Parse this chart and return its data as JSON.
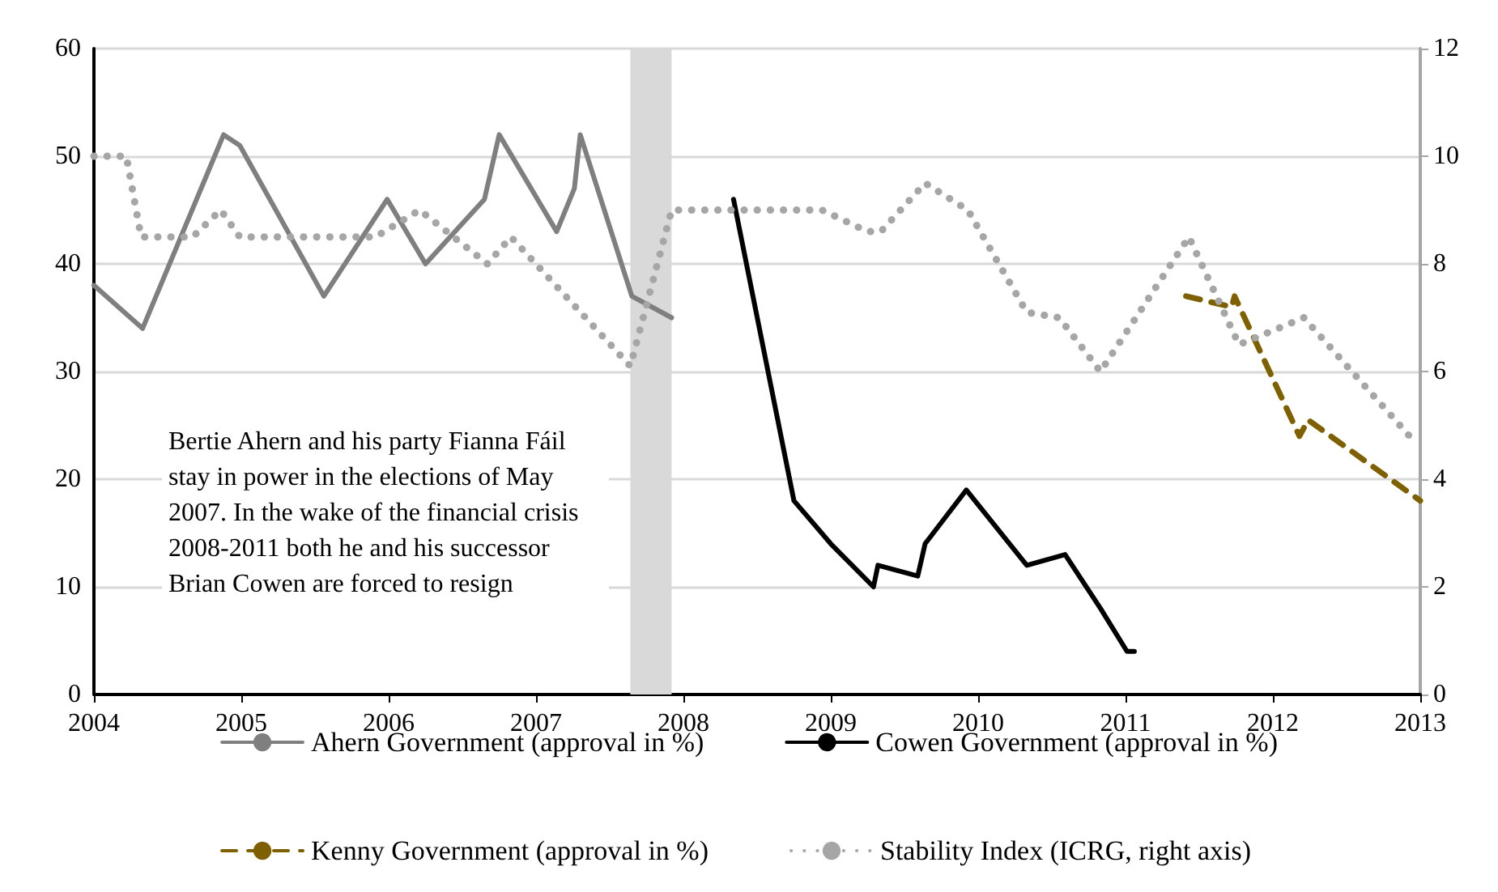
{
  "chart_data": {
    "type": "line",
    "xlim": [
      2004,
      2013
    ],
    "xticks": [
      2004,
      2005,
      2006,
      2007,
      2008,
      2009,
      2010,
      2011,
      2012,
      2013
    ],
    "ylim": [
      0,
      60
    ],
    "yticks": [
      0,
      10,
      20,
      30,
      40,
      50,
      60
    ],
    "y2lim": [
      0,
      12
    ],
    "y2ticks": [
      0,
      2,
      4,
      6,
      8,
      10,
      12
    ],
    "grid": "y",
    "legend": "bottom",
    "marker": "none",
    "series": [
      {
        "name": "Ahern Government (approval in %)",
        "color": "#7f7f7f",
        "line_style": "solid",
        "x": [
          2004.0,
          2004.33,
          2004.88,
          2004.99,
          2005.56,
          2005.99,
          2006.25,
          2006.65,
          2006.75,
          2007.14,
          2007.26,
          2007.3,
          2007.65,
          2007.92
        ],
        "values": [
          38,
          34,
          52,
          51,
          37,
          46,
          40,
          46,
          52,
          43,
          47,
          52,
          37,
          35
        ]
      },
      {
        "name": "Cowen Government (approval in %)",
        "color": "#000000",
        "line_style": "solid",
        "x": [
          2008.34,
          2008.75,
          2009.0,
          2009.29,
          2009.32,
          2009.59,
          2009.64,
          2009.92,
          2010.33,
          2010.59,
          2010.83,
          2011.01,
          2011.06
        ],
        "values": [
          46,
          18,
          14,
          10,
          12,
          11,
          14,
          19,
          12,
          13,
          8,
          4,
          4
        ]
      },
      {
        "name": "Kenny Government (approval in %)",
        "color": "#7f6000",
        "line_style": "dashed",
        "x": [
          2011.41,
          2011.72,
          2011.74,
          2012.18,
          2012.24,
          2013.0
        ],
        "values": [
          37,
          36,
          37,
          24,
          25.5,
          18
        ]
      },
      {
        "name": "Stability Index (ICRG, right axis)",
        "color": "#a6a6a6",
        "line_style": "dotted",
        "axis": "y2",
        "x": [
          2004.0,
          2004.22,
          2004.32,
          2004.67,
          2004.86,
          2004.99,
          2005.91,
          2006.21,
          2006.67,
          2006.83,
          2007.64,
          2007.92,
          2008.94,
          2009.25,
          2009.34,
          2009.64,
          2009.93,
          2010.33,
          2010.55,
          2010.83,
          2011.43,
          2011.77,
          2012.21,
          2012.96
        ],
        "values": [
          10,
          10,
          8.5,
          8.5,
          9,
          8.5,
          8.5,
          9,
          8,
          8.5,
          6.1,
          9,
          9,
          8.6,
          8.6,
          9.5,
          9,
          7.1,
          7,
          6,
          8.5,
          6.5,
          7,
          4.7
        ]
      }
    ],
    "bands": [
      {
        "axis": "x",
        "from": 2007.64,
        "to": 2007.92,
        "color": "#d9d9d9"
      }
    ],
    "annotations": [
      "Bertie Ahern and his party Fianna Fáil stay in power in the elections of May 2007. In the wake of the financial crisis 2008-2011 both he and his successor Brian Cowen are forced to resign"
    ]
  }
}
